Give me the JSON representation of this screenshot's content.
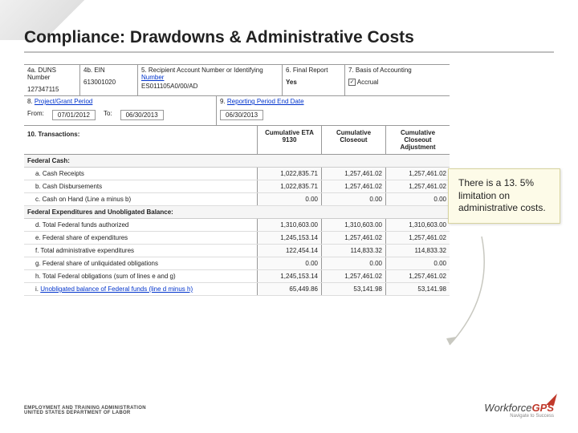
{
  "title": "Compliance: Drawdowns & Administrative Costs",
  "headers": {
    "duns": "4a. DUNS Number",
    "ein": "4b. EIN",
    "recip": "5. Recipient Account Number or Identifying",
    "recip_link": "Number",
    "final": "6. Final Report",
    "basis": "7. Basis of Accounting"
  },
  "vals": {
    "duns": "127347115",
    "ein": "613001020",
    "recip": "ES011105A0/00/AD",
    "final": "Yes",
    "basis": "Accrual"
  },
  "periods": {
    "proj_label": "8.",
    "proj_link": "Project/Grant Period",
    "from_label": "From:",
    "from": "07/01/2012",
    "to_label": "To:",
    "to": "06/30/2013",
    "rep_label": "9.",
    "rep_link": "Reporting Period End Date",
    "rep_date": "06/30/2013"
  },
  "trans": {
    "label": "10. Transactions:",
    "col1": "Cumulative ETA 9130",
    "col2": "Cumulative Closeout",
    "col3": "Cumulative Closeout Adjustment"
  },
  "sections": {
    "cash": "Federal Cash:",
    "exp": "Federal Expenditures and Unobligated Balance:"
  },
  "rows": [
    {
      "lab": "a. Cash Receipts",
      "v": [
        "1,022,835.71",
        "1,257,461.02",
        "1,257,461.02"
      ]
    },
    {
      "lab": "b. Cash Disbursements",
      "v": [
        "1,022,835.71",
        "1,257,461.02",
        "1,257,461.02"
      ]
    },
    {
      "lab": "c. Cash on Hand (Line a minus b)",
      "v": [
        "0.00",
        "0.00",
        "0.00"
      ]
    }
  ],
  "rows2": [
    {
      "lab": "d. Total Federal funds authorized",
      "v": [
        "1,310,603.00",
        "1,310,603.00",
        "1,310,603.00"
      ]
    },
    {
      "lab": "e. Federal share of expenditures",
      "v": [
        "1,245,153.14",
        "1,257,461.02",
        "1,257,461.02"
      ]
    },
    {
      "lab": "f. Total administrative expenditures",
      "v": [
        "122,454.14",
        "114,833.32",
        "114,833.32"
      ]
    },
    {
      "lab": "g. Federal share of unliquidated obligations",
      "v": [
        "0.00",
        "0.00",
        "0.00"
      ]
    },
    {
      "lab": "h. Total Federal obligations (sum of lines e and g)",
      "v": [
        "1,245,153.14",
        "1,257,461.02",
        "1,257,461.02"
      ]
    },
    {
      "lab": "i. Unobligated balance of Federal funds (line d minus h)",
      "v": [
        "65,449.86",
        "53,141.98",
        "53,141.98"
      ],
      "link": true
    }
  ],
  "callout": "There is a 13. 5% limitation on administrative costs.",
  "footer": {
    "line1": "EMPLOYMENT AND TRAINING ADMINISTRATION",
    "line2": "UNITED STATES DEPARTMENT OF LABOR",
    "brand1": "Workforce",
    "brand2": "GPS",
    "tag": "Navigate to Success"
  }
}
